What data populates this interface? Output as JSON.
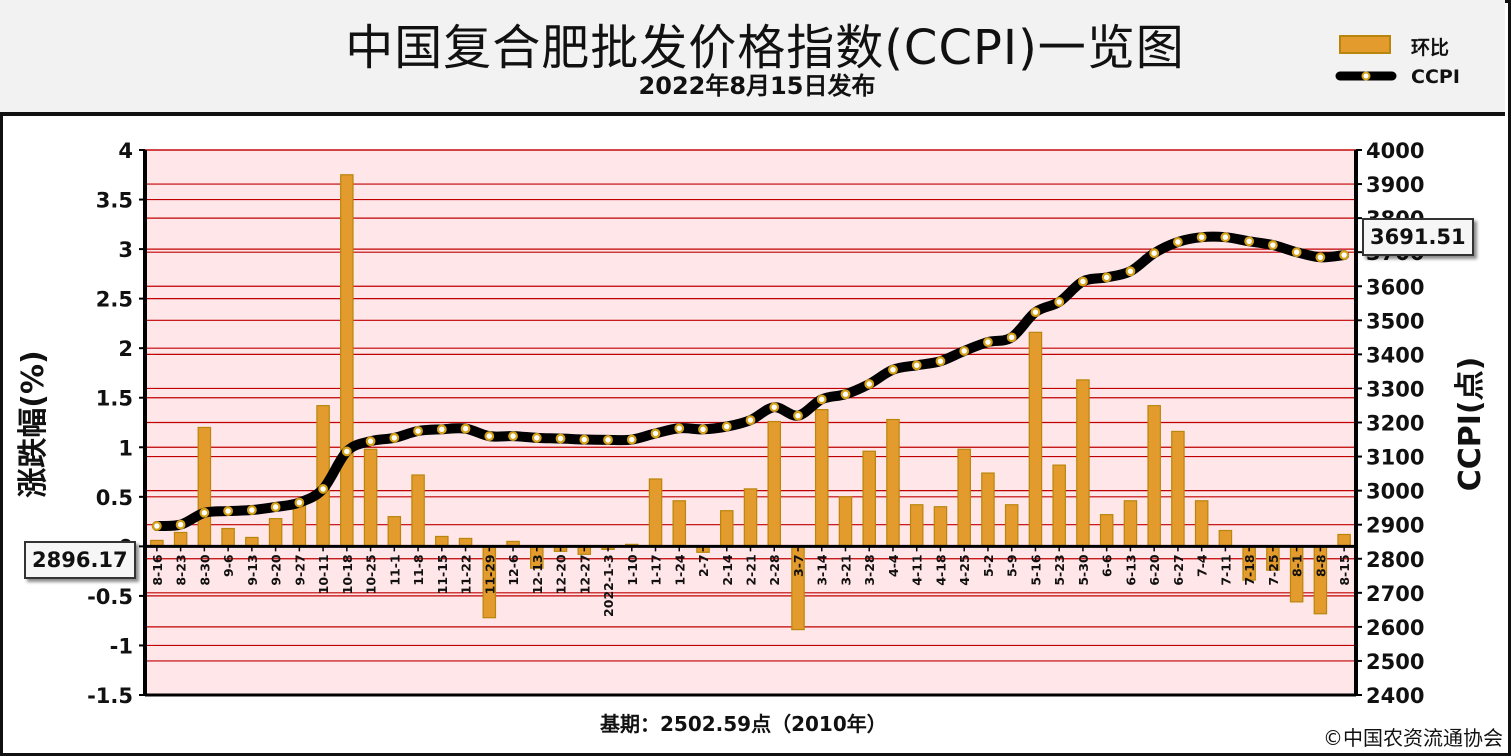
{
  "header": {
    "title": "中国复合肥批发价格指数(CCPI)一览图",
    "subtitle": "2022年8月15日发布"
  },
  "legend": {
    "bar_label": "环比",
    "line_label": "CCPI"
  },
  "axis": {
    "left_label": "涨跌幅(%)",
    "right_label": "CCPI(点)"
  },
  "callouts": {
    "start_value": "2896.17",
    "end_value": "3691.51"
  },
  "footer": {
    "base_note": "基期：2502.59点（2010年）",
    "copyright": "©中国农资流通协会"
  },
  "colors": {
    "band": "#ffe6e9",
    "gridline": "#c00000",
    "bar_fill": "#e39b2d",
    "bar_stroke": "#b8860b",
    "line": "#000000",
    "marker_fill": "#ffffff",
    "marker_stroke": "#d4a017"
  },
  "chart_data": {
    "type": "bar+line",
    "categories": [
      "8-16",
      "8-23",
      "8-30",
      "9-6",
      "9-13",
      "9-20",
      "9-27",
      "10-11",
      "10-18",
      "10-25",
      "11-1",
      "11-8",
      "11-15",
      "11-22",
      "11-29",
      "12-6",
      "12-13",
      "12-20",
      "12-27",
      "2022-1-3",
      "1-10",
      "1-17",
      "1-24",
      "2-7",
      "2-14",
      "2-21",
      "2-28",
      "3-7",
      "3-14",
      "3-21",
      "3-28",
      "4-4",
      "4-11",
      "4-18",
      "4-25",
      "5-2",
      "5-9",
      "5-16",
      "5-23",
      "5-30",
      "6-6",
      "6-13",
      "6-20",
      "6-27",
      "7-4",
      "7-11",
      "7-18",
      "7-25",
      "8-1",
      "8-8",
      "8-15"
    ],
    "series": [
      {
        "name": "环比",
        "axis": "left",
        "values": [
          0.06,
          0.14,
          1.2,
          0.18,
          0.09,
          0.28,
          0.42,
          1.42,
          3.75,
          0.98,
          0.3,
          0.72,
          0.1,
          0.08,
          -0.72,
          0.05,
          -0.22,
          -0.05,
          -0.08,
          -0.03,
          0.02,
          0.68,
          0.46,
          -0.06,
          0.36,
          0.58,
          1.26,
          -0.84,
          1.38,
          0.5,
          0.96,
          1.28,
          0.42,
          0.4,
          0.98,
          0.74,
          0.42,
          2.16,
          0.82,
          1.68,
          0.32,
          0.46,
          1.42,
          1.16,
          0.46,
          0.16,
          -0.34,
          -0.24,
          -0.56,
          -0.68,
          0.12
        ]
      },
      {
        "name": "CCPI",
        "axis": "right",
        "values": [
          2896.17,
          2900.2,
          2935,
          2940,
          2943,
          2952,
          2965,
          3005,
          3115,
          3145,
          3155,
          3175,
          3180,
          3182,
          3160,
          3160,
          3155,
          3153,
          3150,
          3149,
          3150,
          3168,
          3183,
          3180,
          3188,
          3207,
          3245,
          3220,
          3268,
          3283,
          3313,
          3355,
          3368,
          3380,
          3410,
          3436,
          3450,
          3524,
          3554,
          3614,
          3626,
          3644,
          3697,
          3730,
          3744,
          3744,
          3732,
          3721,
          3700,
          3685,
          3691.51
        ]
      }
    ],
    "y_left": {
      "label": "涨跌幅(%)",
      "min": -1.5,
      "max": 4,
      "ticks": [
        "4",
        "3.5",
        "3",
        "2.5",
        "2",
        "1.5",
        "1",
        "0.5",
        "0",
        "-0.5",
        "-1",
        "-1.5"
      ]
    },
    "y_right": {
      "label": "CCPI(点)",
      "min": 2400,
      "max": 4000,
      "ticks": [
        "4000",
        "3900",
        "3800",
        "3700",
        "3600",
        "3500",
        "3400",
        "3300",
        "3200",
        "3100",
        "3000",
        "2900",
        "2800",
        "2700",
        "2600",
        "2500",
        "2400"
      ]
    },
    "legend_position": "top-right",
    "grid": true
  }
}
